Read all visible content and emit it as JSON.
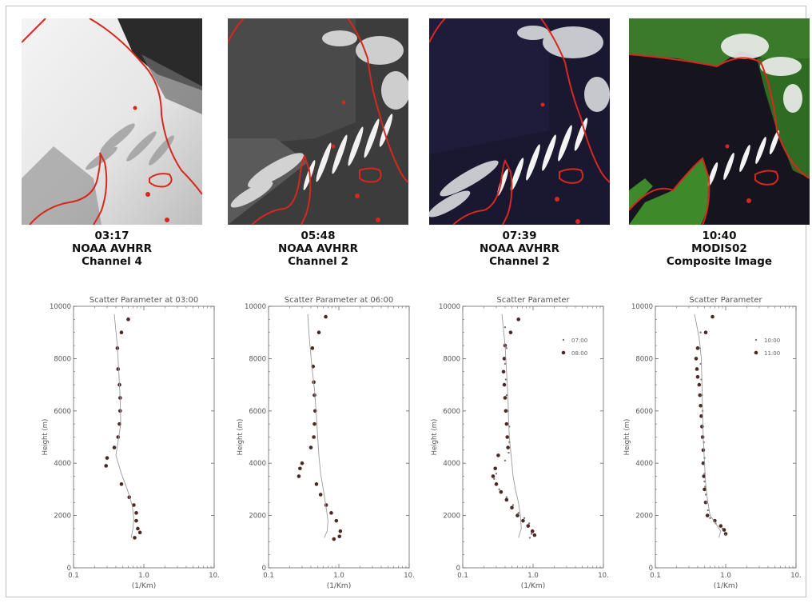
{
  "panels": [
    {
      "time": "03:17",
      "sensor": "NOAA AVHRR",
      "product": "Channel 4"
    },
    {
      "time": "05:48",
      "sensor": "NOAA AVHRR",
      "product": "Channel 2"
    },
    {
      "time": "07:39",
      "sensor": "NOAA AVHRR",
      "product": "Channel 2"
    },
    {
      "time": "10:40",
      "sensor": "MODIS02",
      "product": "Composite Image"
    }
  ],
  "colors": {
    "coastline": "#d8281e",
    "points": "#4a2a24",
    "line": "#9a9a9a",
    "axis": "#666666"
  },
  "chart_data": [
    {
      "type": "scatter",
      "title": "Scatter Parameter at 03:00",
      "xlabel": "(1/Km)",
      "ylabel": "Height (m)",
      "xscale": "log",
      "xlim": [
        0.1,
        10
      ],
      "ylim": [
        0,
        10000
      ],
      "xticks": [
        "0.1",
        "1.0",
        "10."
      ],
      "yticks": [
        "0",
        "2000",
        "4000",
        "6000",
        "8000",
        "10000"
      ],
      "legend": null,
      "series": [
        {
          "kind": "points",
          "points": [
            [
              0.6,
              9500
            ],
            [
              0.48,
              9000
            ],
            [
              0.42,
              8400
            ],
            [
              0.43,
              7600
            ],
            [
              0.45,
              7000
            ],
            [
              0.46,
              6500
            ],
            [
              0.46,
              6000
            ],
            [
              0.45,
              5500
            ],
            [
              0.43,
              5000
            ],
            [
              0.38,
              4600
            ],
            [
              0.3,
              4200
            ],
            [
              0.29,
              3900
            ],
            [
              0.48,
              3200
            ],
            [
              0.62,
              2700
            ],
            [
              0.72,
              2400
            ],
            [
              0.78,
              2100
            ],
            [
              0.78,
              1800
            ],
            [
              0.82,
              1500
            ],
            [
              0.88,
              1350
            ],
            [
              0.74,
              1150
            ]
          ]
        },
        {
          "kind": "line",
          "points": [
            [
              0.38,
              9700
            ],
            [
              0.42,
              8500
            ],
            [
              0.44,
              7500
            ],
            [
              0.46,
              6500
            ],
            [
              0.47,
              5500
            ],
            [
              0.44,
              5000
            ],
            [
              0.4,
              4300
            ],
            [
              0.48,
              3600
            ],
            [
              0.58,
              3000
            ],
            [
              0.68,
              2400
            ],
            [
              0.72,
              1900
            ],
            [
              0.7,
              1500
            ],
            [
              0.66,
              1150
            ]
          ]
        }
      ]
    },
    {
      "type": "scatter",
      "title": "Scatter Parameter at 06:00",
      "xlabel": "(1/Km)",
      "ylabel": "Height (m)",
      "xscale": "log",
      "xlim": [
        0.1,
        10
      ],
      "ylim": [
        0,
        10000
      ],
      "xticks": [
        "0.1",
        "1.0",
        "10."
      ],
      "yticks": [
        "0",
        "2000",
        "4000",
        "6000",
        "8000",
        "10000"
      ],
      "legend": null,
      "series": [
        {
          "kind": "points",
          "points": [
            [
              0.65,
              9600
            ],
            [
              0.52,
              9000
            ],
            [
              0.42,
              8400
            ],
            [
              0.43,
              7700
            ],
            [
              0.44,
              7100
            ],
            [
              0.45,
              6600
            ],
            [
              0.46,
              6000
            ],
            [
              0.45,
              5500
            ],
            [
              0.44,
              5000
            ],
            [
              0.4,
              4600
            ],
            [
              0.3,
              4000
            ],
            [
              0.28,
              3800
            ],
            [
              0.27,
              3500
            ],
            [
              0.48,
              3200
            ],
            [
              0.55,
              2800
            ],
            [
              0.66,
              2400
            ],
            [
              0.78,
              2100
            ],
            [
              0.92,
              1800
            ],
            [
              1.05,
              1400
            ],
            [
              1.02,
              1200
            ],
            [
              0.85,
              1100
            ]
          ]
        },
        {
          "kind": "line",
          "points": [
            [
              0.36,
              9700
            ],
            [
              0.38,
              8800
            ],
            [
              0.41,
              7800
            ],
            [
              0.45,
              6800
            ],
            [
              0.48,
              5800
            ],
            [
              0.5,
              5000
            ],
            [
              0.52,
              4300
            ],
            [
              0.55,
              3600
            ],
            [
              0.6,
              3000
            ],
            [
              0.66,
              2300
            ],
            [
              0.7,
              1800
            ],
            [
              0.68,
              1400
            ],
            [
              0.62,
              1150
            ]
          ]
        }
      ]
    },
    {
      "type": "scatter",
      "title": "Scatter Parameter",
      "xlabel": "(1/Km)",
      "ylabel": "Height (m)",
      "xscale": "log",
      "xlim": [
        0.1,
        10
      ],
      "ylim": [
        0,
        10000
      ],
      "xticks": [
        "0.1",
        "1.0",
        "10."
      ],
      "yticks": [
        "0",
        "2000",
        "4000",
        "6000",
        "8000",
        "10000"
      ],
      "legend": [
        "07:00",
        "08:00"
      ],
      "series": [
        {
          "kind": "points",
          "name": "08:00",
          "points": [
            [
              0.62,
              9500
            ],
            [
              0.48,
              9000
            ],
            [
              0.4,
              8500
            ],
            [
              0.39,
              8000
            ],
            [
              0.38,
              7500
            ],
            [
              0.39,
              7000
            ],
            [
              0.4,
              6500
            ],
            [
              0.41,
              6000
            ],
            [
              0.42,
              5500
            ],
            [
              0.43,
              5000
            ],
            [
              0.44,
              4600
            ],
            [
              0.32,
              4300
            ],
            [
              0.29,
              3800
            ],
            [
              0.27,
              3500
            ],
            [
              0.3,
              3200
            ],
            [
              0.35,
              2900
            ],
            [
              0.42,
              2600
            ],
            [
              0.5,
              2300
            ],
            [
              0.6,
              2000
            ],
            [
              0.72,
              1800
            ],
            [
              0.85,
              1600
            ],
            [
              0.98,
              1400
            ],
            [
              1.05,
              1250
            ]
          ]
        },
        {
          "kind": "small",
          "name": "07:00",
          "points": [
            [
              0.4,
              9200
            ],
            [
              0.42,
              8400
            ],
            [
              0.4,
              7800
            ],
            [
              0.41,
              7200
            ],
            [
              0.42,
              6600
            ],
            [
              0.44,
              6000
            ],
            [
              0.46,
              5400
            ],
            [
              0.46,
              4800
            ],
            [
              0.45,
              4400
            ],
            [
              0.4,
              4100
            ],
            [
              0.3,
              3600
            ],
            [
              0.28,
              3400
            ],
            [
              0.33,
              3000
            ],
            [
              0.42,
              2700
            ],
            [
              0.52,
              2400
            ],
            [
              0.62,
              2100
            ],
            [
              0.75,
              1900
            ],
            [
              0.88,
              1700
            ],
            [
              0.95,
              1300
            ],
            [
              0.9,
              1150
            ]
          ]
        },
        {
          "kind": "line",
          "points": [
            [
              0.36,
              9700
            ],
            [
              0.4,
              8500
            ],
            [
              0.42,
              7500
            ],
            [
              0.44,
              6500
            ],
            [
              0.45,
              5500
            ],
            [
              0.46,
              5000
            ],
            [
              0.48,
              4500
            ],
            [
              0.5,
              4000
            ],
            [
              0.52,
              3500
            ],
            [
              0.56,
              3000
            ],
            [
              0.62,
              2500
            ],
            [
              0.66,
              2000
            ],
            [
              0.68,
              1500
            ],
            [
              0.62,
              1150
            ]
          ]
        }
      ]
    },
    {
      "type": "scatter",
      "title": "Scatter Parameter",
      "xlabel": "(1/Km)",
      "ylabel": "Height (m)",
      "xscale": "log",
      "xlim": [
        0.1,
        10
      ],
      "ylim": [
        0,
        10000
      ],
      "xticks": [
        "0.1",
        "1.0",
        "10."
      ],
      "yticks": [
        "0",
        "2000",
        "4000",
        "6000",
        "8000",
        "10000"
      ],
      "legend": [
        "10:00",
        "11:00"
      ],
      "series": [
        {
          "kind": "points",
          "name": "11:00",
          "points": [
            [
              0.65,
              9600
            ],
            [
              0.52,
              9000
            ],
            [
              0.4,
              8400
            ],
            [
              0.38,
              8000
            ],
            [
              0.39,
              7600
            ],
            [
              0.4,
              7300
            ],
            [
              0.42,
              7000
            ],
            [
              0.43,
              6600
            ],
            [
              0.44,
              6200
            ],
            [
              0.45,
              5800
            ],
            [
              0.46,
              5400
            ],
            [
              0.47,
              5000
            ],
            [
              0.48,
              4500
            ],
            [
              0.48,
              4000
            ],
            [
              0.49,
              3500
            ],
            [
              0.5,
              3000
            ],
            [
              0.52,
              2500
            ],
            [
              0.55,
              2000
            ],
            [
              0.7,
              1800
            ],
            [
              0.85,
              1600
            ],
            [
              0.95,
              1450
            ],
            [
              1.0,
              1300
            ]
          ]
        },
        {
          "kind": "small",
          "name": "10:00",
          "points": [
            [
              0.44,
              9000
            ],
            [
              0.43,
              8400
            ],
            [
              0.44,
              7800
            ],
            [
              0.45,
              7200
            ],
            [
              0.46,
              6600
            ],
            [
              0.47,
              6000
            ],
            [
              0.48,
              5400
            ],
            [
              0.49,
              4800
            ],
            [
              0.5,
              4200
            ],
            [
              0.5,
              3600
            ],
            [
              0.5,
              3300
            ],
            [
              0.51,
              3100
            ],
            [
              0.52,
              2800
            ],
            [
              0.54,
              2500
            ],
            [
              0.56,
              2200
            ],
            [
              0.6,
              1900
            ],
            [
              0.72,
              1700
            ],
            [
              0.9,
              1500
            ],
            [
              1.0,
              1250
            ]
          ]
        },
        {
          "kind": "line",
          "points": [
            [
              0.36,
              9700
            ],
            [
              0.42,
              8800
            ],
            [
              0.45,
              8000
            ],
            [
              0.46,
              7000
            ],
            [
              0.47,
              6000
            ],
            [
              0.48,
              5000
            ],
            [
              0.5,
              4000
            ],
            [
              0.52,
              3200
            ],
            [
              0.55,
              2600
            ],
            [
              0.6,
              2000
            ],
            [
              0.72,
              1700
            ],
            [
              0.85,
              1400
            ],
            [
              0.8,
              1150
            ]
          ]
        }
      ]
    }
  ]
}
